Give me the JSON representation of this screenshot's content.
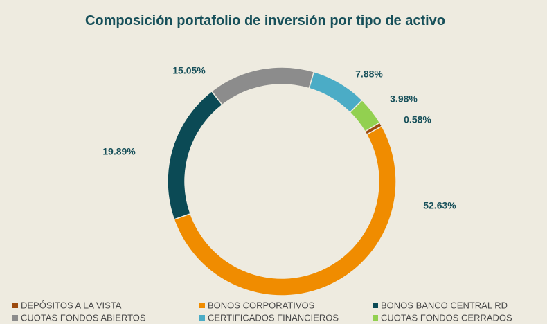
{
  "chart_data": {
    "type": "donut",
    "title": "Composición portafolio de inversión por tipo de activo",
    "categories": [
      "DEPÓSITOS A LA VISTA",
      "BONOS CORPORATIVOS",
      "BONOS BANCO CENTRAL RD",
      "CUOTAS FONDOS ABIERTOS",
      "CERTIFICADOS FINANCIEROS",
      "CUOTAS FONDOS CERRADOS"
    ],
    "values": [
      0.58,
      52.63,
      19.89,
      15.05,
      7.88,
      3.98
    ],
    "value_labels": [
      "0.58%",
      "52.63%",
      "19.89%",
      "15.05%",
      "7.88%",
      "3.98%"
    ],
    "colors": [
      "#9c4a0e",
      "#f08c00",
      "#0b4a55",
      "#8c8c8c",
      "#4bacc6",
      "#92d050"
    ]
  }
}
